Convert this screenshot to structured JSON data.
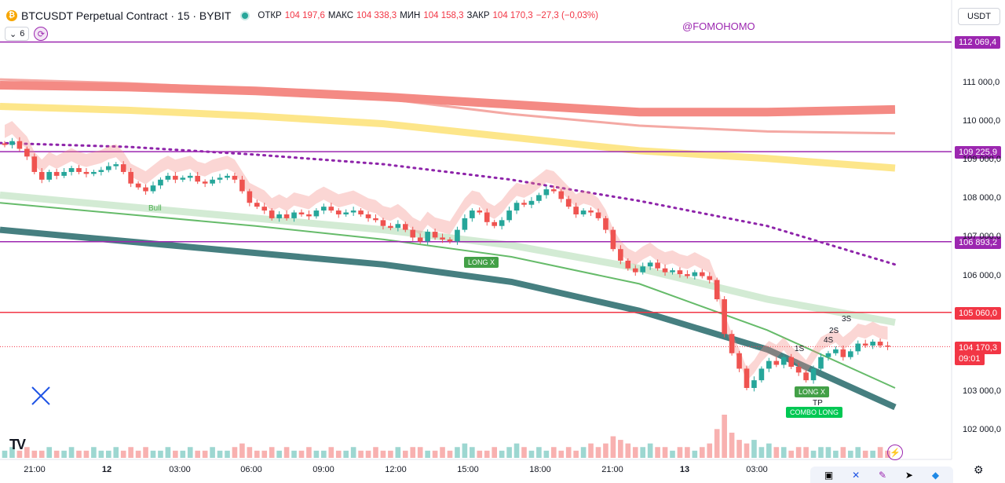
{
  "header": {
    "title": "BTCUSDT Perpetual Contract · 15 · BYBIT",
    "open_label": "ОТКР",
    "open": "104 197,6",
    "high_label": "МАКС",
    "high": "104 338,3",
    "low_label": "МИН",
    "low": "104 158,3",
    "close_label": "ЗАКР",
    "close": "104 170,3",
    "change": "−27,3 (−0,03%)",
    "indicators_count": "6",
    "currency": "USDT",
    "watermark": "@FOMOHOMO"
  },
  "price_tags": {
    "level_1": "112 069,4",
    "level_2": "109 225,9",
    "level_3": "106 893,2",
    "level_4": "105 060,0",
    "last_price": "104 170,3",
    "countdown": "09:01"
  },
  "colors": {
    "up": "#26a69a",
    "down": "#ef5350",
    "purple_level": "#9c27b0",
    "red_level": "#f23645",
    "band_upper": "#f48a84",
    "band_lower": "#fde68a",
    "lower_band": "#467f80"
  },
  "annotations": {
    "bull": "Bull",
    "long_x_1": "LONG X",
    "long_x_2": "LONG X",
    "combo_long": "COMBO LONG",
    "tp": "TP",
    "s1": "1S",
    "s2": "2S",
    "s3": "3S",
    "s4": "4S"
  },
  "chart_data": {
    "type": "candlestick",
    "symbol": "BTCUSDT",
    "interval": "15",
    "x_ticks": [
      "21:00",
      "12",
      "03:00",
      "06:00",
      "09:00",
      "12:00",
      "15:00",
      "18:00",
      "21:00",
      "13",
      "03:00"
    ],
    "y_ticks": [
      102000,
      103000,
      104000,
      105000,
      106000,
      107000,
      108000,
      109000,
      110000,
      111000
    ],
    "y_tick_labels": [
      "102 000,0",
      "103 000,0",
      "",
      "",
      "106 000,0",
      "107 000,0",
      "108 000,0",
      "109 000,0",
      "110 000,0",
      "111 000,0"
    ],
    "ylim": [
      101700,
      112400
    ],
    "horizontal_levels": [
      112069.4,
      109225.9,
      106893.2,
      105060.0
    ],
    "last_price": 104170.3,
    "ohlc": {
      "open": 104197.6,
      "high": 104338.3,
      "low": 104158.3,
      "close": 104170.3
    },
    "price_path": [
      109400,
      109500,
      109300,
      109100,
      108700,
      108500,
      108700,
      108600,
      108700,
      108800,
      108700,
      108650,
      108700,
      108750,
      108850,
      108900,
      108700,
      108400,
      108300,
      108200,
      108350,
      108500,
      108600,
      108500,
      108550,
      108600,
      108450,
      108400,
      108500,
      108550,
      108600,
      108500,
      108200,
      107900,
      107800,
      107700,
      107500,
      107600,
      107500,
      107650,
      107600,
      107550,
      107700,
      107800,
      107700,
      107600,
      107650,
      107700,
      107600,
      107500,
      107450,
      107300,
      107250,
      107350,
      107200,
      107000,
      106900,
      107150,
      107000,
      106950,
      106900,
      107200,
      107500,
      107700,
      107650,
      107400,
      107300,
      107450,
      107700,
      107900,
      107850,
      107950,
      108100,
      108250,
      108200,
      108000,
      107800,
      107600,
      107700,
      107650,
      107500,
      107200,
      106700,
      106400,
      106200,
      106100,
      106250,
      106350,
      106200,
      106100,
      106150,
      106050,
      106000,
      106100,
      106000,
      105900,
      105400,
      104500,
      104000,
      103600,
      103100,
      103300,
      103600,
      103800,
      103700,
      103900,
      103650,
      103500,
      103300,
      103600,
      103900,
      104000,
      104100,
      103900,
      104050,
      104250,
      104200,
      104300,
      104200,
      104170
    ],
    "volume": [
      2,
      3,
      2,
      3,
      2,
      2,
      3,
      2,
      2,
      3,
      2,
      2,
      3,
      2,
      2,
      3,
      2,
      3,
      2,
      3,
      2,
      2,
      3,
      2,
      2,
      3,
      2,
      2,
      3,
      2,
      2,
      3,
      4,
      3,
      2,
      2,
      3,
      2,
      3,
      2,
      2,
      3,
      2,
      2,
      3,
      2,
      2,
      3,
      2,
      2,
      3,
      2,
      2,
      3,
      2,
      3,
      3,
      2,
      2,
      3,
      2,
      3,
      4,
      3,
      2,
      2,
      3,
      2,
      3,
      4,
      3,
      2,
      3,
      2,
      3,
      2,
      3,
      2,
      3,
      4,
      3,
      4,
      6,
      5,
      4,
      3,
      3,
      4,
      3,
      3,
      2,
      3,
      3,
      2,
      3,
      4,
      8,
      12,
      7,
      5,
      4,
      5,
      3,
      4,
      3,
      3,
      2,
      3,
      3,
      2,
      3,
      3,
      2,
      3,
      2,
      3,
      2,
      2,
      3,
      2
    ],
    "bands": {
      "upper_thick_red": [
        110950,
        110900,
        110800,
        110650,
        110450,
        110250,
        110250,
        110320
      ],
      "upper_thin_red": [
        111100,
        111000,
        110850,
        110600,
        110200,
        109900,
        109750,
        109700
      ],
      "yellow": [
        110400,
        110300,
        110150,
        109950,
        109600,
        109250,
        109050,
        108800
      ],
      "dotted_purple": [
        109450,
        109350,
        109150,
        108900,
        108500,
        107950,
        107300,
        106300
      ],
      "green_light": [
        108100,
        107800,
        107500,
        107200,
        106800,
        106200,
        105400,
        104800
      ],
      "green_line": [
        107900,
        107600,
        107300,
        106950,
        106500,
        105800,
        104600,
        103100
      ],
      "teal_thick": [
        107200,
        106900,
        106600,
        106300,
        105850,
        105100,
        104100,
        102600
      ]
    }
  }
}
